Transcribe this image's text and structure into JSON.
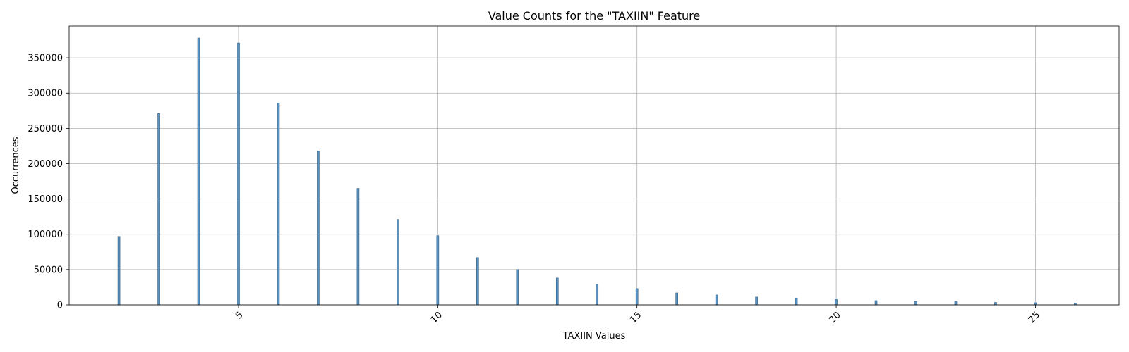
{
  "chart_data": {
    "type": "bar",
    "title": "Value Counts for the \"TAXIIN\" Feature",
    "xlabel": "TAXIIN Values",
    "ylabel": "Occurrences",
    "xlim": [
      0.75,
      27.1
    ],
    "ylim": [
      0,
      395000
    ],
    "xticks": [
      5,
      10,
      15,
      20,
      25
    ],
    "xtick_rotation": 45,
    "yticks": [
      0,
      50000,
      100000,
      150000,
      200000,
      250000,
      300000,
      350000
    ],
    "grid": true,
    "bar_color": "#5a93c2",
    "bar_edge_color": "#2f5f86",
    "x": [
      2,
      3,
      4,
      5,
      6,
      7,
      8,
      9,
      10,
      11,
      12,
      13,
      14,
      15,
      16,
      17,
      18,
      19,
      20,
      21,
      22,
      23,
      24,
      25,
      26
    ],
    "values": [
      97000,
      271000,
      378000,
      371000,
      286000,
      218000,
      165000,
      121000,
      98000,
      67000,
      50000,
      38000,
      29000,
      23000,
      17000,
      14000,
      11000,
      9000,
      7500,
      6000,
      5000,
      4500,
      3500,
      3000,
      2500
    ]
  }
}
